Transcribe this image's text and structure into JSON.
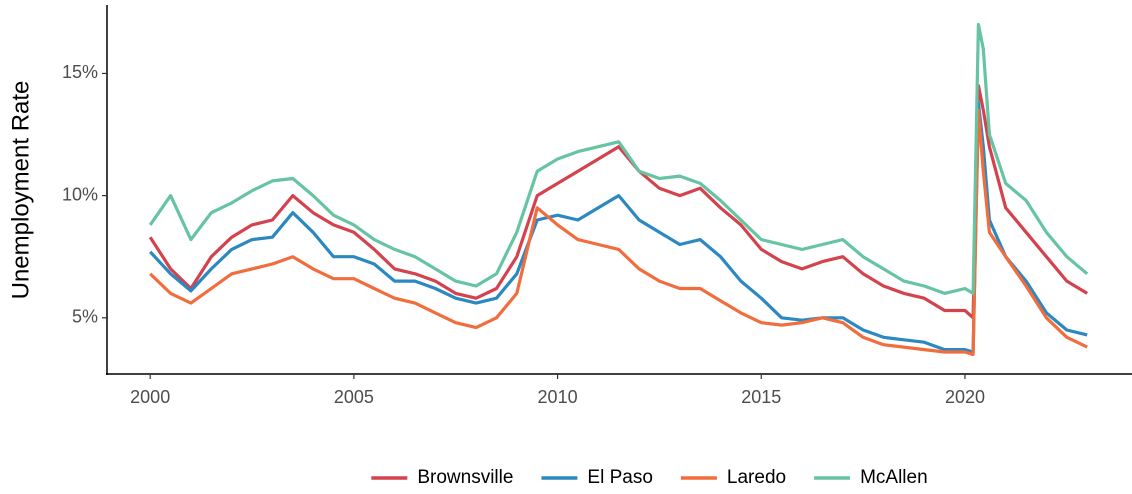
{
  "chart_data": {
    "type": "line",
    "y_label": "Unemployment Rate",
    "x": [
      2000.0,
      2000.5,
      2001.0,
      2001.5,
      2002.0,
      2002.5,
      2003.0,
      2003.5,
      2004.0,
      2004.5,
      2005.0,
      2005.5,
      2006.0,
      2006.5,
      2007.0,
      2007.5,
      2008.0,
      2008.5,
      2009.0,
      2009.5,
      2010.0,
      2010.5,
      2011.0,
      2011.5,
      2012.0,
      2012.5,
      2013.0,
      2013.5,
      2014.0,
      2014.5,
      2015.0,
      2015.5,
      2016.0,
      2016.5,
      2017.0,
      2017.5,
      2018.0,
      2018.5,
      2019.0,
      2019.5,
      2020.0,
      2020.2,
      2020.33,
      2020.45,
      2020.6,
      2021.0,
      2021.5,
      2022.0,
      2022.5,
      2023.0
    ],
    "series": [
      {
        "name": "Brownsville",
        "color": "#d4424e",
        "values": [
          8.3,
          7.0,
          6.2,
          7.5,
          8.3,
          8.8,
          9.0,
          10.0,
          9.3,
          8.8,
          8.5,
          7.8,
          7.0,
          6.8,
          6.5,
          6.0,
          5.8,
          6.2,
          7.5,
          10.0,
          10.5,
          11.0,
          11.5,
          12.0,
          11.0,
          10.3,
          10.0,
          10.3,
          9.5,
          8.8,
          7.8,
          7.3,
          7.0,
          7.3,
          7.5,
          6.8,
          6.3,
          6.0,
          5.8,
          5.3,
          5.3,
          5.0,
          14.5,
          13.5,
          12.0,
          9.5,
          8.5,
          7.5,
          6.5,
          6.0
        ]
      },
      {
        "name": "El Paso",
        "color": "#2b88c0",
        "values": [
          7.7,
          6.8,
          6.1,
          7.0,
          7.8,
          8.2,
          8.3,
          9.3,
          8.5,
          7.5,
          7.5,
          7.2,
          6.5,
          6.5,
          6.2,
          5.8,
          5.6,
          5.8,
          6.8,
          9.0,
          9.2,
          9.0,
          9.5,
          10.0,
          9.0,
          8.5,
          8.0,
          8.2,
          7.5,
          6.5,
          5.8,
          5.0,
          4.9,
          5.0,
          5.0,
          4.5,
          4.2,
          4.1,
          4.0,
          3.7,
          3.7,
          3.6,
          13.8,
          12.0,
          9.0,
          7.5,
          6.5,
          5.2,
          4.5,
          4.3
        ]
      },
      {
        "name": "Laredo",
        "color": "#f26d3d",
        "values": [
          6.8,
          6.0,
          5.6,
          6.2,
          6.8,
          7.0,
          7.2,
          7.5,
          7.0,
          6.6,
          6.6,
          6.2,
          5.8,
          5.6,
          5.2,
          4.8,
          4.6,
          5.0,
          6.0,
          9.5,
          8.8,
          8.2,
          8.0,
          7.8,
          7.0,
          6.5,
          6.2,
          6.2,
          5.7,
          5.2,
          4.8,
          4.7,
          4.8,
          5.0,
          4.8,
          4.2,
          3.9,
          3.8,
          3.7,
          3.6,
          3.6,
          3.5,
          13.5,
          11.0,
          8.5,
          7.5,
          6.3,
          5.0,
          4.2,
          3.8
        ]
      },
      {
        "name": "McAllen",
        "color": "#66c4a3",
        "values": [
          8.8,
          10.0,
          8.2,
          9.3,
          9.7,
          10.2,
          10.6,
          10.7,
          10.0,
          9.2,
          8.8,
          8.2,
          7.8,
          7.5,
          7.0,
          6.5,
          6.3,
          6.8,
          8.5,
          11.0,
          11.5,
          11.8,
          12.0,
          12.2,
          11.0,
          10.7,
          10.8,
          10.5,
          9.8,
          9.0,
          8.2,
          8.0,
          7.8,
          8.0,
          8.2,
          7.5,
          7.0,
          6.5,
          6.3,
          6.0,
          6.2,
          6.0,
          17.0,
          16.0,
          12.5,
          10.5,
          9.8,
          8.5,
          7.5,
          6.8
        ]
      }
    ],
    "xlim": [
      1998.94,
      2024.1
    ],
    "xticks": [
      2000,
      2005,
      2010,
      2015,
      2020
    ],
    "ylim": [
      2.7,
      17.8
    ],
    "yticks": [
      {
        "value": 5,
        "label": "5%"
      },
      {
        "value": 10,
        "label": "10%"
      },
      {
        "value": 15,
        "label": "15%"
      }
    ],
    "legend": "bottom"
  }
}
